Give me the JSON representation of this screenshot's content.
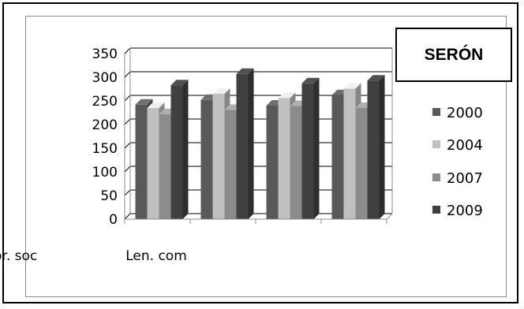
{
  "title": "SERÓN",
  "chart_data": {
    "type": "bar",
    "title": "SERÓN",
    "categories": [
      "Len. com",
      "",
      "Compr. soc",
      ""
    ],
    "series": [
      {
        "name": "2000",
        "values": [
          242,
          252,
          240,
          262
        ],
        "color": "#595959"
      },
      {
        "name": "2004",
        "values": [
          235,
          265,
          256,
          276
        ],
        "color": "#c0c0c0"
      },
      {
        "name": "2007",
        "values": [
          222,
          231,
          239,
          235
        ],
        "color": "#8c8c8c"
      },
      {
        "name": "2009",
        "values": [
          283,
          307,
          287,
          293
        ],
        "color": "#404040"
      }
    ],
    "y_ticks": [
      "350",
      "300",
      "250",
      "200",
      "150",
      "100",
      "50",
      "0"
    ],
    "ylim": [
      0,
      350
    ],
    "grid": true,
    "legend_position": "right",
    "style": "3d-clustered-bar"
  }
}
